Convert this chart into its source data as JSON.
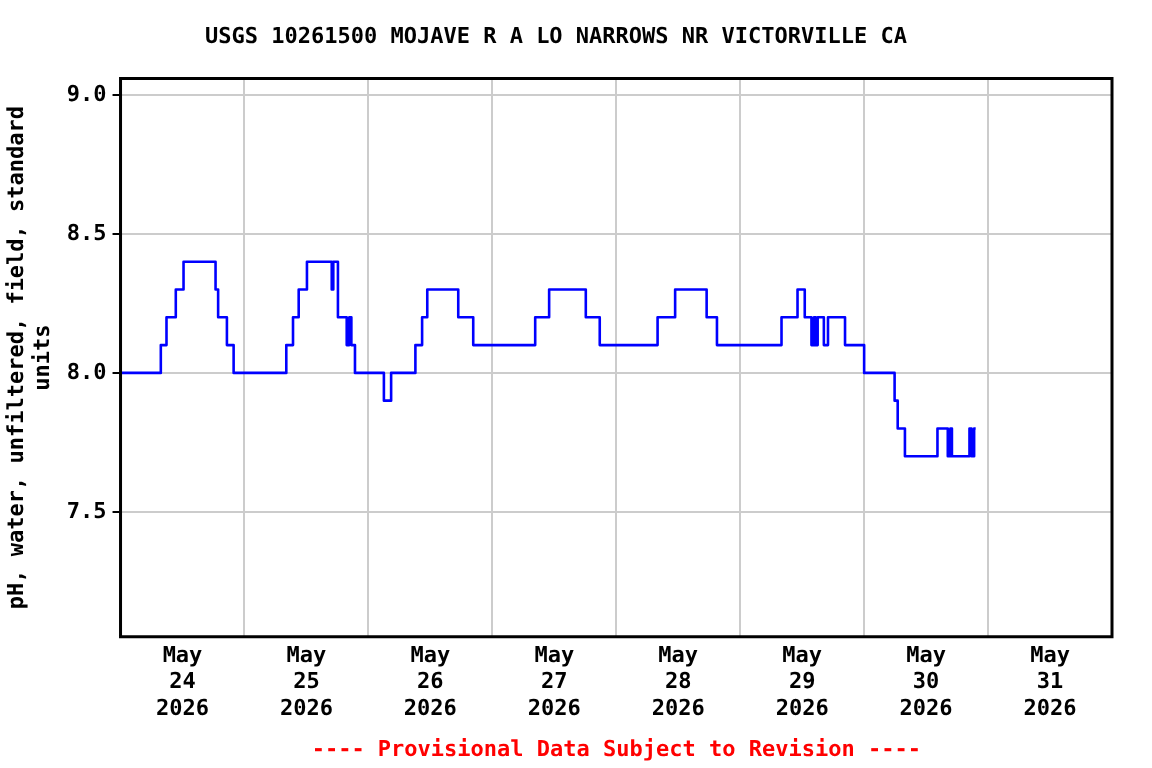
{
  "chart_data": {
    "type": "step",
    "title": "USGS 10261500 MOJAVE R A LO NARROWS NR VICTORVILLE CA",
    "ylabel": "pH, water, unfiltered, field, standard units",
    "annotations": [
      "---- Provisional Data Subject to Revision ----"
    ],
    "x": [
      "2026-05-24T00:00",
      "2026-05-24T07:48",
      "2026-05-24T08:54",
      "2026-05-24T10:42",
      "2026-05-24T12:12",
      "2026-05-24T18:24",
      "2026-05-24T18:54",
      "2026-05-24T20:36",
      "2026-05-24T21:54",
      "2026-05-25T08:06",
      "2026-05-25T09:24",
      "2026-05-25T10:30",
      "2026-05-25T12:06",
      "2026-05-25T16:54",
      "2026-05-25T17:12",
      "2026-05-25T18:06",
      "2026-05-25T19:48",
      "2026-05-25T20:18",
      "2026-05-25T20:42",
      "2026-05-25T21:24",
      "2026-05-26T03:00",
      "2026-05-26T04:24",
      "2026-05-26T09:06",
      "2026-05-26T10:24",
      "2026-05-26T11:24",
      "2026-05-26T17:24",
      "2026-05-26T20:18",
      "2026-05-27T08:18",
      "2026-05-27T11:00",
      "2026-05-27T18:06",
      "2026-05-27T20:48",
      "2026-05-28T08:00",
      "2026-05-28T11:24",
      "2026-05-28T17:30",
      "2026-05-28T19:30",
      "2026-05-29T08:00",
      "2026-05-29T11:06",
      "2026-05-29T12:30",
      "2026-05-29T13:48",
      "2026-05-29T14:18",
      "2026-05-29T14:36",
      "2026-05-29T15:00",
      "2026-05-29T16:12",
      "2026-05-29T17:00",
      "2026-05-29T20:18",
      "2026-05-30T00:00",
      "2026-05-30T05:54",
      "2026-05-30T06:30",
      "2026-05-30T07:54",
      "2026-05-30T14:12",
      "2026-05-30T16:12",
      "2026-05-30T16:42",
      "2026-05-30T17:00",
      "2026-05-30T20:24",
      "2026-05-30T20:48",
      "2026-05-30T21:18",
      "2026-05-30T21:36"
    ],
    "series": [
      {
        "color": "#0000ff",
        "values": [
          8.0,
          8.1,
          8.2,
          8.3,
          8.4,
          8.3,
          8.2,
          8.1,
          8.0,
          8.1,
          8.2,
          8.3,
          8.4,
          8.3,
          8.4,
          8.2,
          8.1,
          8.2,
          8.1,
          8.0,
          7.9,
          8.0,
          8.1,
          8.2,
          8.3,
          8.2,
          8.1,
          8.2,
          8.3,
          8.2,
          8.1,
          8.2,
          8.3,
          8.2,
          8.1,
          8.2,
          8.3,
          8.2,
          8.1,
          8.2,
          8.1,
          8.2,
          8.1,
          8.2,
          8.1,
          8.0,
          7.9,
          7.8,
          7.7,
          7.8,
          7.7,
          7.8,
          7.7,
          7.8,
          7.7,
          7.8,
          7.8
        ]
      }
    ],
    "xlim": [
      "2026-05-24T00:00",
      "2026-06-01T00:00"
    ],
    "xticks": [
      {
        "value": "2026-05-24T12:00",
        "label": "May\n24\n2026"
      },
      {
        "value": "2026-05-25T00:00",
        "label": null
      },
      {
        "value": "2026-05-25T12:00",
        "label": "May\n25\n2026"
      },
      {
        "value": "2026-05-26T00:00",
        "label": null
      },
      {
        "value": "2026-05-26T12:00",
        "label": "May\n26\n2026"
      },
      {
        "value": "2026-05-27T00:00",
        "label": null
      },
      {
        "value": "2026-05-27T12:00",
        "label": "May\n27\n2026"
      },
      {
        "value": "2026-05-28T00:00",
        "label": null
      },
      {
        "value": "2026-05-28T12:00",
        "label": "May\n28\n2026"
      },
      {
        "value": "2026-05-29T00:00",
        "label": null
      },
      {
        "value": "2026-05-29T12:00",
        "label": "May\n29\n2026"
      },
      {
        "value": "2026-05-30T00:00",
        "label": null
      },
      {
        "value": "2026-05-30T12:00",
        "label": "May\n30\n2026"
      },
      {
        "value": "2026-05-31T00:00",
        "label": null
      },
      {
        "value": "2026-05-31T12:00",
        "label": "May\n31\n2026"
      }
    ],
    "ylim": [
      7.05,
      9.06
    ],
    "yticks": [
      {
        "value": 7.5,
        "label": "7.5"
      },
      {
        "value": 8,
        "label": "8.0"
      },
      {
        "value": 8.5,
        "label": "8.5"
      },
      {
        "value": 9,
        "label": "9.0"
      }
    ],
    "grid": true
  }
}
